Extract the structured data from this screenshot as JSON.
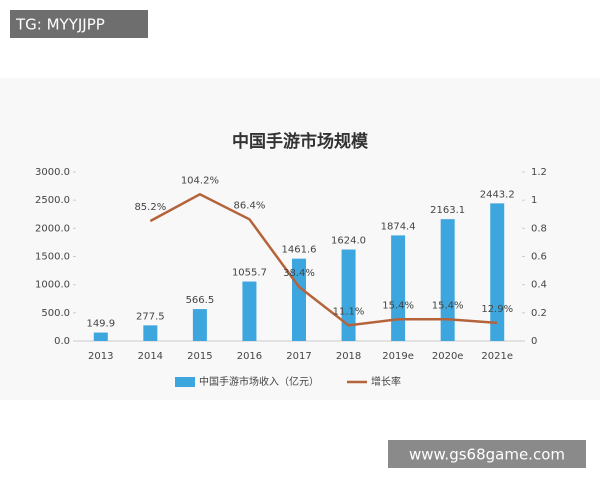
{
  "chart_data": {
    "type": "bar",
    "title": "中国手游市场规模",
    "categories": [
      "2013",
      "2014",
      "2015",
      "2016",
      "2017",
      "2018",
      "2019e",
      "2020e",
      "2021e"
    ],
    "series": [
      {
        "name": "中国手游市场收入（亿元）",
        "color": "#3ea6de",
        "values": [
          149.9,
          277.5,
          566.5,
          1055.7,
          1461.6,
          1624.0,
          1874.4,
          2163.1,
          2443.2
        ],
        "value_labels": [
          "149.9",
          "277.5",
          "566.5",
          "1055.7",
          "1461.6",
          "1624.0",
          "1874.4",
          "2163.1",
          "2443.2"
        ]
      },
      {
        "name": "增长率",
        "color": "#b5633a",
        "type": "line",
        "axis": "y2",
        "values": [
          null,
          0.852,
          1.042,
          0.864,
          0.384,
          0.111,
          0.154,
          0.154,
          0.129
        ],
        "value_labels": [
          null,
          "85.2%",
          "104.2%",
          "86.4%",
          "38.4%",
          "11.1%",
          "15.4%",
          "15.4%",
          "12.9%"
        ]
      }
    ],
    "ylim": [
      0,
      3000
    ],
    "yticks": [
      {
        "value": 0,
        "label": "0.0"
      },
      {
        "value": 500,
        "label": "500.0"
      },
      {
        "value": 1000,
        "label": "1000.0"
      },
      {
        "value": 1500,
        "label": "1500.0"
      },
      {
        "value": 2000,
        "label": "2000.0"
      },
      {
        "value": 2500,
        "label": "2500.0"
      },
      {
        "value": 3000,
        "label": "3000.0"
      }
    ],
    "y2lim": [
      0,
      1.2
    ],
    "y2ticks": [
      0,
      0.2,
      0.4,
      0.6,
      0.8,
      1,
      1.2
    ]
  },
  "overlays": {
    "top_left": "TG: MYYJJPP",
    "bottom_right": "www.gs68game.com"
  }
}
